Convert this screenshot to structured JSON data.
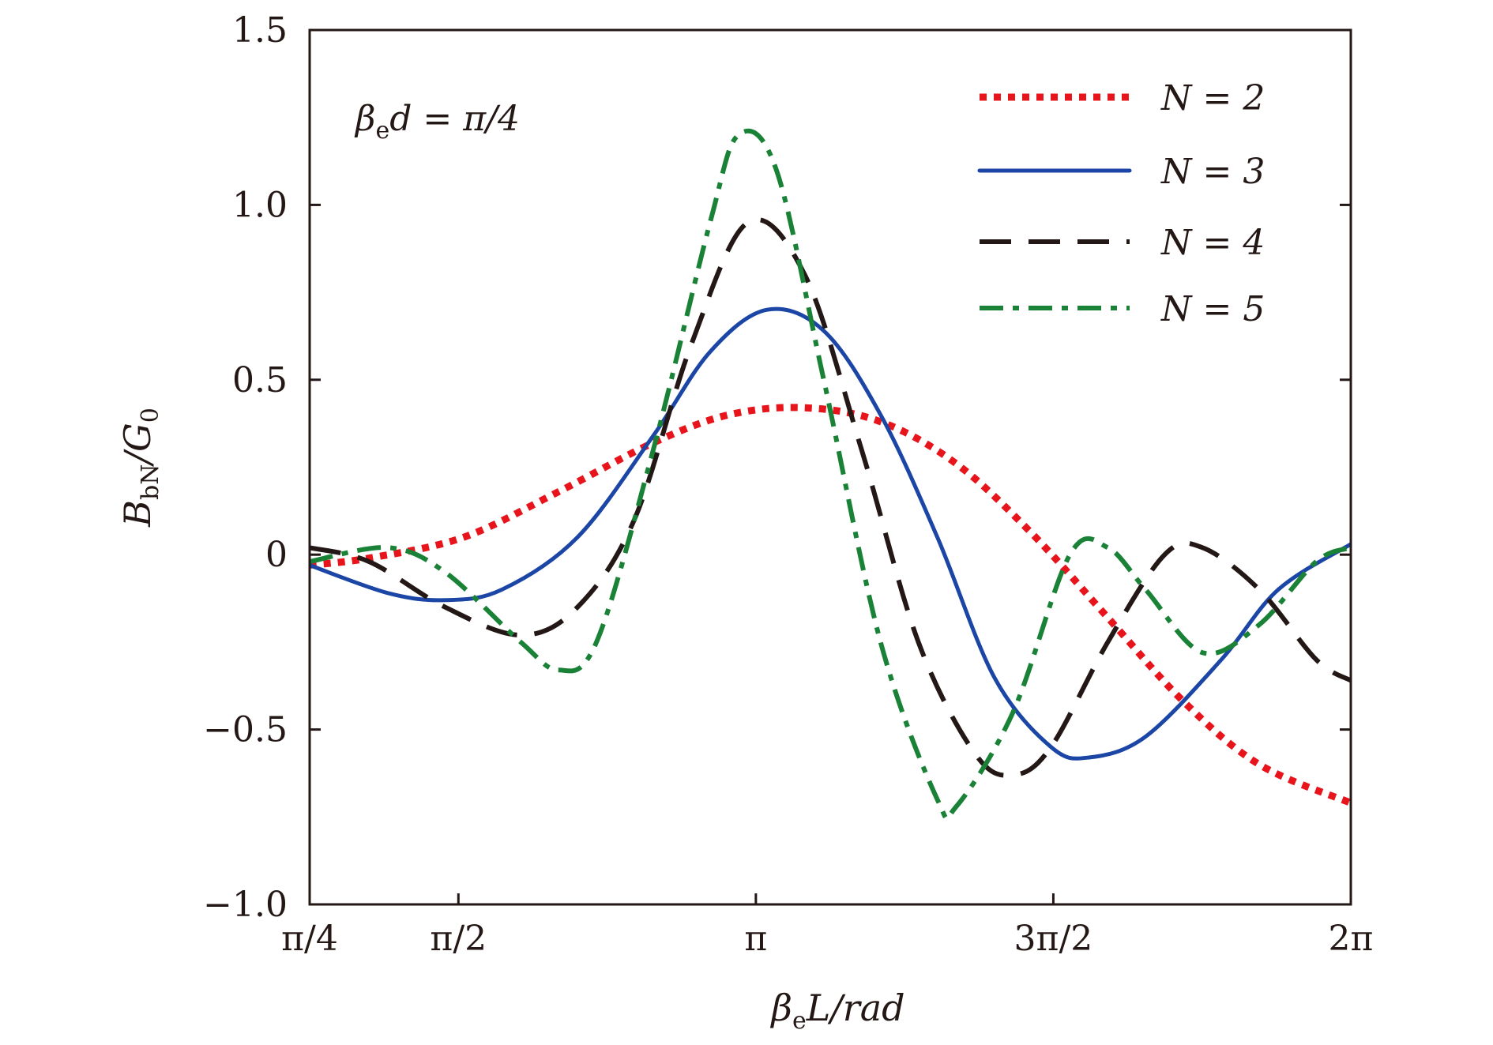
{
  "chart_data": {
    "type": "line",
    "xlabel": "βeL/rad",
    "xlabel_parts": {
      "base": "β",
      "sub": "e",
      "rest": "L/rad"
    },
    "ylabel": "BbN/G0",
    "ylabel_parts": {
      "base": "B",
      "sub": "bN",
      "mid": "/G",
      "sub2": "0"
    },
    "annotation": "βed = π/4",
    "annotation_parts": {
      "base": "β",
      "sub": "e",
      "rest": "d = π/4"
    },
    "xlim": [
      0.7854,
      6.2832
    ],
    "ylim": [
      -1.0,
      1.5
    ],
    "xticks": [
      {
        "value": 0.7854,
        "label": "π/4"
      },
      {
        "value": 1.5708,
        "label": "π/2"
      },
      {
        "value": 3.1416,
        "label": "π"
      },
      {
        "value": 4.7124,
        "label": "3π/2"
      },
      {
        "value": 6.2832,
        "label": "2π"
      }
    ],
    "yticks": [
      {
        "value": 1.5,
        "label": "1.5"
      },
      {
        "value": 1.0,
        "label": "1.0"
      },
      {
        "value": 0.5,
        "label": "0.5"
      },
      {
        "value": 0.0,
        "label": "0"
      },
      {
        "value": -0.5,
        "label": "−0.5"
      },
      {
        "value": -1.0,
        "label": "−1.0"
      }
    ],
    "grid": false,
    "legend_position": "top-right",
    "series": [
      {
        "name": "N = 2",
        "color": "#e8141b",
        "style": "dotted",
        "points": [
          [
            0.785,
            -0.03
          ],
          [
            1.1,
            -0.01
          ],
          [
            1.6,
            0.05
          ],
          [
            2.1,
            0.18
          ],
          [
            2.6,
            0.32
          ],
          [
            3.0,
            0.4
          ],
          [
            3.4,
            0.42
          ],
          [
            3.8,
            0.38
          ],
          [
            4.2,
            0.26
          ],
          [
            4.6,
            0.06
          ],
          [
            5.0,
            -0.18
          ],
          [
            5.4,
            -0.42
          ],
          [
            5.8,
            -0.6
          ],
          [
            6.283,
            -0.71
          ]
        ]
      },
      {
        "name": "N = 3",
        "color": "#1b46a5",
        "style": "solid",
        "points": [
          [
            0.785,
            -0.03
          ],
          [
            1.2,
            -0.11
          ],
          [
            1.5,
            -0.13
          ],
          [
            1.8,
            -0.1
          ],
          [
            2.2,
            0.05
          ],
          [
            2.6,
            0.34
          ],
          [
            2.9,
            0.58
          ],
          [
            3.2,
            0.7
          ],
          [
            3.5,
            0.64
          ],
          [
            3.8,
            0.4
          ],
          [
            4.1,
            0.05
          ],
          [
            4.4,
            -0.35
          ],
          [
            4.7,
            -0.55
          ],
          [
            4.9,
            -0.58
          ],
          [
            5.2,
            -0.52
          ],
          [
            5.6,
            -0.3
          ],
          [
            5.9,
            -0.1
          ],
          [
            6.283,
            0.03
          ]
        ]
      },
      {
        "name": "N = 4",
        "color": "#231815",
        "style": "dashed",
        "points": [
          [
            0.785,
            0.02
          ],
          [
            1.1,
            -0.02
          ],
          [
            1.5,
            -0.15
          ],
          [
            1.9,
            -0.23
          ],
          [
            2.2,
            -0.15
          ],
          [
            2.5,
            0.1
          ],
          [
            2.8,
            0.6
          ],
          [
            3.1,
            0.95
          ],
          [
            3.4,
            0.8
          ],
          [
            3.7,
            0.3
          ],
          [
            4.0,
            -0.25
          ],
          [
            4.3,
            -0.57
          ],
          [
            4.5,
            -0.63
          ],
          [
            4.7,
            -0.55
          ],
          [
            5.0,
            -0.25
          ],
          [
            5.3,
            0.0
          ],
          [
            5.5,
            0.02
          ],
          [
            5.8,
            -0.1
          ],
          [
            6.1,
            -0.3
          ],
          [
            6.283,
            -0.36
          ]
        ]
      },
      {
        "name": "N = 5",
        "color": "#1a8236",
        "style": "dashdot",
        "points": [
          [
            0.785,
            -0.02
          ],
          [
            1.2,
            0.02
          ],
          [
            1.5,
            -0.05
          ],
          [
            1.9,
            -0.25
          ],
          [
            2.1,
            -0.33
          ],
          [
            2.3,
            -0.25
          ],
          [
            2.6,
            0.3
          ],
          [
            2.9,
            0.95
          ],
          [
            3.05,
            1.2
          ],
          [
            3.25,
            1.1
          ],
          [
            3.5,
            0.5
          ],
          [
            3.8,
            -0.25
          ],
          [
            4.1,
            -0.7
          ],
          [
            4.2,
            -0.72
          ],
          [
            4.5,
            -0.45
          ],
          [
            4.8,
            0.0
          ],
          [
            5.0,
            0.02
          ],
          [
            5.2,
            -0.1
          ],
          [
            5.5,
            -0.28
          ],
          [
            5.8,
            -0.2
          ],
          [
            6.1,
            -0.02
          ],
          [
            6.283,
            0.02
          ]
        ]
      }
    ]
  }
}
